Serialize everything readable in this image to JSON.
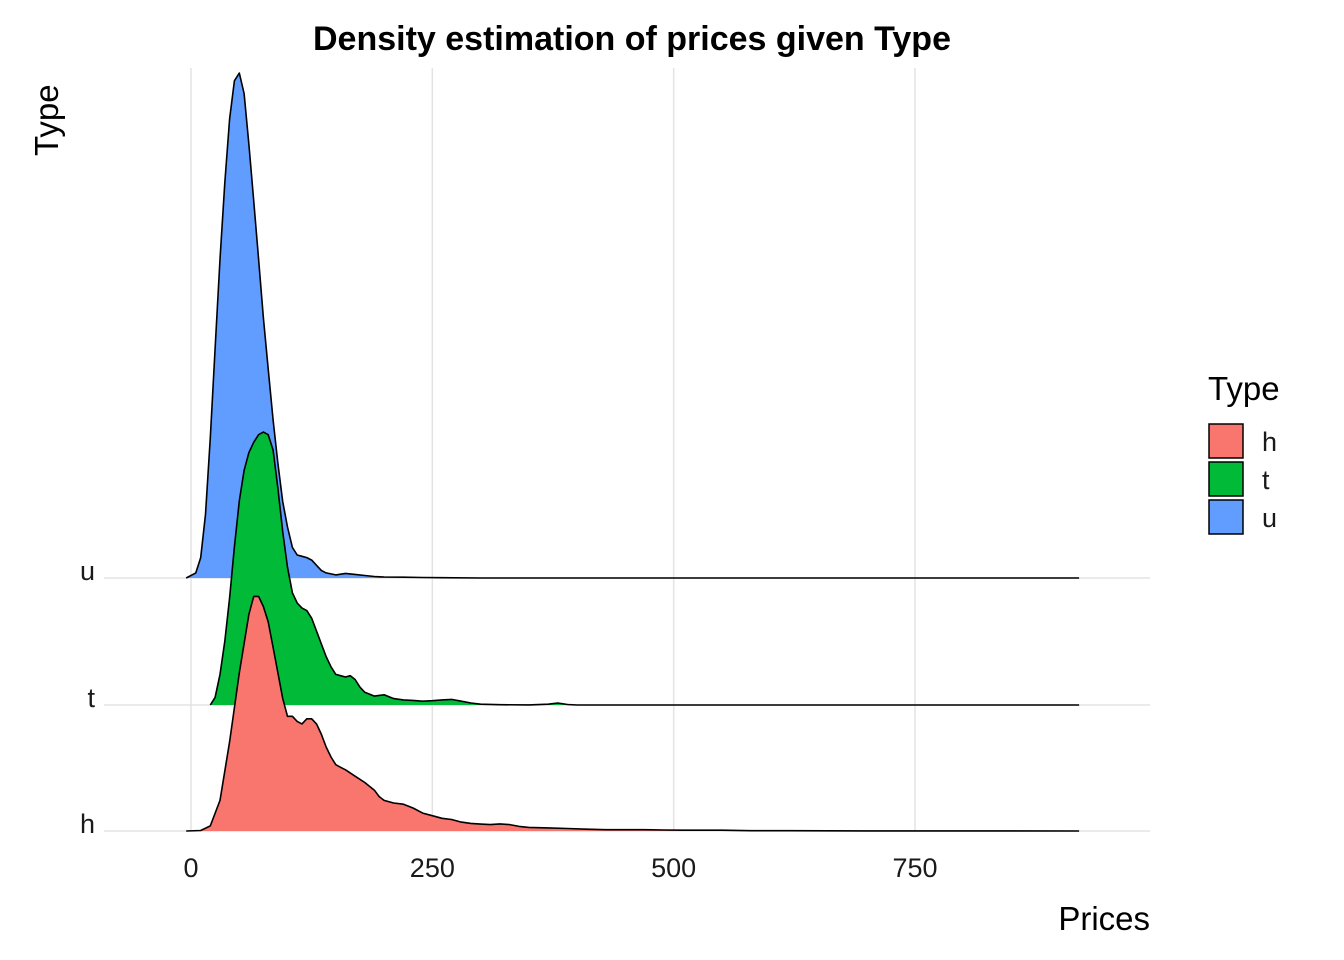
{
  "chart_data": {
    "type": "ridgeline-density",
    "title": "Density estimation of prices given Type",
    "xlabel": "Prices",
    "ylabel": "Type",
    "xlim": [
      -90,
      990
    ],
    "x_ticks": [
      "0",
      "250",
      "500",
      "750"
    ],
    "x_tick_values": [
      0,
      250,
      500,
      750
    ],
    "categories": [
      "h",
      "t",
      "u"
    ],
    "grid": "major vertical + category baselines",
    "legend": {
      "title": "Type",
      "position": "right",
      "items": [
        {
          "label": "h",
          "color": "#F8766D"
        },
        {
          "label": "t",
          "color": "#00BA38"
        },
        {
          "label": "u",
          "color": "#619CFF"
        }
      ]
    },
    "series": [
      {
        "name": "h",
        "color": "#F8766D",
        "x_range": [
          -5,
          920
        ],
        "points": [
          [
            -5,
            0
          ],
          [
            10,
            0.002
          ],
          [
            20,
            0.02
          ],
          [
            30,
            0.12
          ],
          [
            40,
            0.35
          ],
          [
            50,
            0.62
          ],
          [
            60,
            0.85
          ],
          [
            65,
            0.92
          ],
          [
            70,
            0.92
          ],
          [
            75,
            0.88
          ],
          [
            80,
            0.82
          ],
          [
            85,
            0.72
          ],
          [
            90,
            0.62
          ],
          [
            95,
            0.52
          ],
          [
            100,
            0.45
          ],
          [
            105,
            0.45
          ],
          [
            110,
            0.43
          ],
          [
            115,
            0.42
          ],
          [
            120,
            0.44
          ],
          [
            125,
            0.44
          ],
          [
            130,
            0.42
          ],
          [
            135,
            0.38
          ],
          [
            140,
            0.33
          ],
          [
            145,
            0.29
          ],
          [
            150,
            0.26
          ],
          [
            155,
            0.25
          ],
          [
            160,
            0.24
          ],
          [
            170,
            0.215
          ],
          [
            180,
            0.19
          ],
          [
            190,
            0.16
          ],
          [
            195,
            0.135
          ],
          [
            200,
            0.12
          ],
          [
            210,
            0.11
          ],
          [
            220,
            0.105
          ],
          [
            230,
            0.09
          ],
          [
            240,
            0.07
          ],
          [
            250,
            0.06
          ],
          [
            260,
            0.05
          ],
          [
            270,
            0.045
          ],
          [
            280,
            0.035
          ],
          [
            290,
            0.03
          ],
          [
            300,
            0.027
          ],
          [
            310,
            0.025
          ],
          [
            320,
            0.028
          ],
          [
            330,
            0.025
          ],
          [
            340,
            0.018
          ],
          [
            350,
            0.014
          ],
          [
            370,
            0.012
          ],
          [
            390,
            0.01
          ],
          [
            410,
            0.007
          ],
          [
            430,
            0.005
          ],
          [
            450,
            0.005
          ],
          [
            470,
            0.005
          ],
          [
            490,
            0.004
          ],
          [
            510,
            0.003
          ],
          [
            530,
            0.003
          ],
          [
            550,
            0.003
          ],
          [
            580,
            0.001
          ],
          [
            620,
            0.001
          ],
          [
            700,
            0.0005
          ],
          [
            800,
            0.0003
          ],
          [
            920,
            0
          ]
        ]
      },
      {
        "name": "t",
        "color": "#00BA38",
        "x_range": [
          20,
          920
        ],
        "points": [
          [
            20,
            0
          ],
          [
            25,
            0.03
          ],
          [
            30,
            0.12
          ],
          [
            35,
            0.25
          ],
          [
            40,
            0.42
          ],
          [
            45,
            0.62
          ],
          [
            50,
            0.8
          ],
          [
            55,
            0.92
          ],
          [
            60,
            0.99
          ],
          [
            65,
            1.03
          ],
          [
            70,
            1.06
          ],
          [
            75,
            1.07
          ],
          [
            80,
            1.06
          ],
          [
            85,
            1.0
          ],
          [
            90,
            0.85
          ],
          [
            95,
            0.68
          ],
          [
            100,
            0.54
          ],
          [
            105,
            0.44
          ],
          [
            110,
            0.4
          ],
          [
            115,
            0.38
          ],
          [
            120,
            0.37
          ],
          [
            125,
            0.34
          ],
          [
            130,
            0.29
          ],
          [
            135,
            0.24
          ],
          [
            140,
            0.19
          ],
          [
            145,
            0.15
          ],
          [
            150,
            0.12
          ],
          [
            155,
            0.115
          ],
          [
            160,
            0.11
          ],
          [
            165,
            0.115
          ],
          [
            170,
            0.1
          ],
          [
            175,
            0.07
          ],
          [
            180,
            0.05
          ],
          [
            190,
            0.035
          ],
          [
            200,
            0.04
          ],
          [
            210,
            0.025
          ],
          [
            220,
            0.02
          ],
          [
            230,
            0.018
          ],
          [
            240,
            0.015
          ],
          [
            250,
            0.017
          ],
          [
            260,
            0.02
          ],
          [
            270,
            0.022
          ],
          [
            280,
            0.015
          ],
          [
            290,
            0.008
          ],
          [
            300,
            0.003
          ],
          [
            320,
            0.001
          ],
          [
            350,
            0.0005
          ],
          [
            370,
            0.003
          ],
          [
            380,
            0.008
          ],
          [
            390,
            0.002
          ],
          [
            400,
            0
          ],
          [
            920,
            0
          ]
        ]
      },
      {
        "name": "u",
        "color": "#619CFF",
        "x_range": [
          -5,
          920
        ],
        "points": [
          [
            -5,
            0
          ],
          [
            5,
            0.02
          ],
          [
            10,
            0.08
          ],
          [
            15,
            0.25
          ],
          [
            20,
            0.55
          ],
          [
            25,
            0.9
          ],
          [
            30,
            1.25
          ],
          [
            35,
            1.55
          ],
          [
            40,
            1.8
          ],
          [
            45,
            1.95
          ],
          [
            50,
            1.98
          ],
          [
            55,
            1.9
          ],
          [
            60,
            1.7
          ],
          [
            65,
            1.48
          ],
          [
            70,
            1.25
          ],
          [
            75,
            1.02
          ],
          [
            80,
            0.82
          ],
          [
            85,
            0.62
          ],
          [
            90,
            0.45
          ],
          [
            95,
            0.3
          ],
          [
            100,
            0.2
          ],
          [
            105,
            0.12
          ],
          [
            110,
            0.09
          ],
          [
            115,
            0.085
          ],
          [
            120,
            0.08
          ],
          [
            125,
            0.07
          ],
          [
            130,
            0.05
          ],
          [
            135,
            0.03
          ],
          [
            140,
            0.02
          ],
          [
            150,
            0.012
          ],
          [
            160,
            0.018
          ],
          [
            170,
            0.014
          ],
          [
            180,
            0.01
          ],
          [
            190,
            0.006
          ],
          [
            200,
            0.004
          ],
          [
            220,
            0.003
          ],
          [
            240,
            0.002
          ],
          [
            260,
            0.001
          ],
          [
            300,
            0
          ],
          [
            920,
            0
          ]
        ]
      }
    ]
  }
}
